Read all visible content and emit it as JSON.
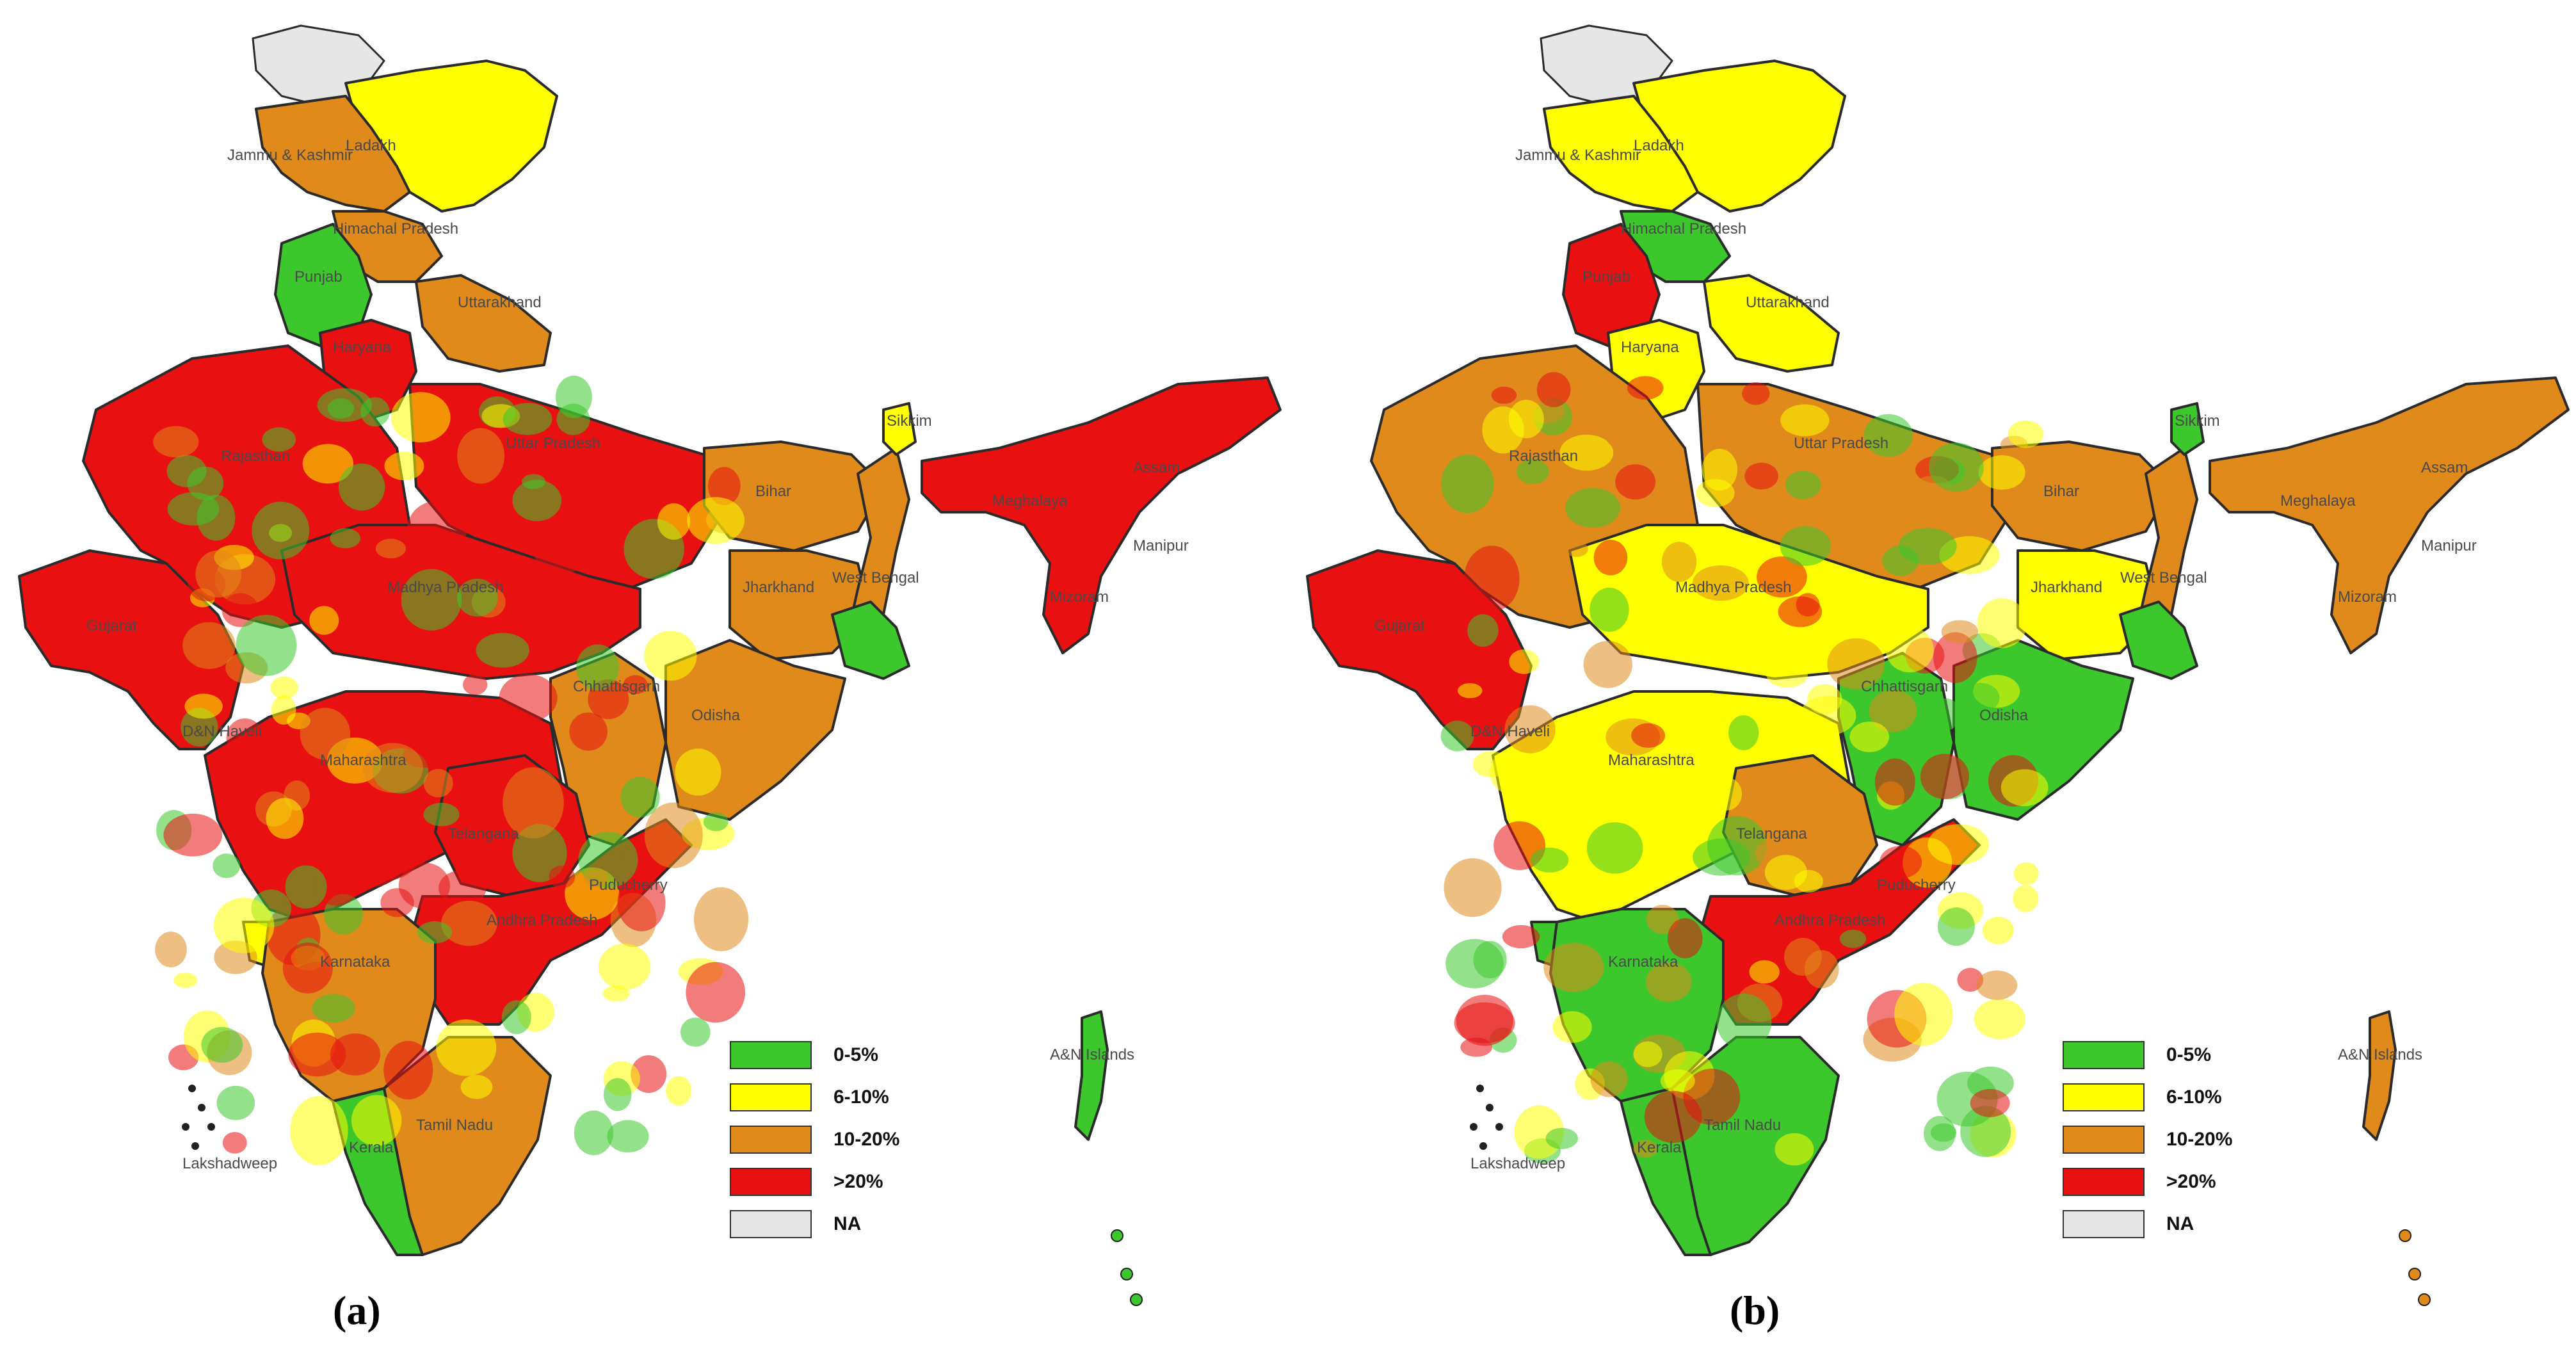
{
  "legend": [
    {
      "label": "0-5%",
      "color": "#3cc82d"
    },
    {
      "label": "6-10%",
      "color": "#ffff00"
    },
    {
      "label": "10-20%",
      "color": "#e08a1c"
    },
    {
      "label": ">20%",
      "color": "#e81010"
    },
    {
      "label": "NA",
      "color": "#e6e6e6"
    }
  ],
  "state_labels": {
    "ladakh": "Ladakh",
    "jammu_kashmir": "Jammu & Kashmir",
    "himachal_pradesh": "Himachal Pradesh",
    "punjab": "Punjab",
    "uttarakhand": "Uttarakhand",
    "haryana": "Haryana",
    "rajasthan": "Rajasthan",
    "uttar_pradesh": "Uttar Pradesh",
    "bihar": "Bihar",
    "sikkim": "Sikkim",
    "assam": "Assam",
    "meghalaya": "Meghalaya",
    "manipur": "Manipur",
    "mizoram": "Mizoram",
    "west_bengal": "West Bengal",
    "jharkhand": "Jharkhand",
    "madhya_pradesh": "Madhya Pradesh",
    "gujarat": "Gujarat",
    "chhattisgarh": "Chhattisgarh",
    "odisha": "Odisha",
    "dnh": "D&N Haveli",
    "maharashtra": "Maharashtra",
    "telangana": "Telangana",
    "puducherry": "Puducherry",
    "andhra_pradesh": "Andhra Pradesh",
    "karnataka": "Karnataka",
    "tamil_nadu": "Tamil Nadu",
    "kerala": "Kerala",
    "lakshadweep": "Lakshadweep",
    "an_islands": "A&N Islands"
  },
  "panels": [
    {
      "caption": "(a)",
      "dominant_color": "#e81010",
      "regions": {
        "jk": "#e08a1c",
        "ladakh": "#ffff00",
        "pok": "#e6e6e6",
        "hp": "#e08a1c",
        "punjab": "#3cc82d",
        "haryana": "#e81010",
        "uk": "#e08a1c",
        "rajasthan": "#e81010",
        "up": "#e81010",
        "bihar": "#e08a1c",
        "jharkhand": "#e08a1c",
        "wb": "#e08a1c",
        "wb_south": "#3cc82d",
        "sikkim": "#ffff00",
        "ne": "#e81010",
        "mp": "#e81010",
        "gujarat": "#e81010",
        "cg": "#e08a1c",
        "odisha": "#e08a1c",
        "maharashtra": "#e81010",
        "telangana": "#e81010",
        "ap": "#e81010",
        "karnataka": "#e08a1c",
        "tn": "#e08a1c",
        "kerala": "#3cc82d",
        "goa": "#ffff00",
        "an": "#3cc82d"
      }
    },
    {
      "caption": "(b)",
      "dominant_color": "#ffff00",
      "regions": {
        "jk": "#ffff00",
        "ladakh": "#ffff00",
        "pok": "#e6e6e6",
        "hp": "#3cc82d",
        "punjab": "#e81010",
        "haryana": "#ffff00",
        "uk": "#ffff00",
        "rajasthan": "#e08a1c",
        "up": "#e08a1c",
        "bihar": "#e08a1c",
        "jharkhand": "#ffff00",
        "wb": "#e08a1c",
        "wb_south": "#3cc82d",
        "sikkim": "#3cc82d",
        "ne": "#e08a1c",
        "mp": "#ffff00",
        "gujarat": "#e81010",
        "cg": "#3cc82d",
        "odisha": "#3cc82d",
        "maharashtra": "#ffff00",
        "telangana": "#e08a1c",
        "ap": "#e81010",
        "karnataka": "#3cc82d",
        "tn": "#3cc82d",
        "kerala": "#3cc82d",
        "goa": "#3cc82d",
        "an": "#e08a1c"
      }
    }
  ]
}
